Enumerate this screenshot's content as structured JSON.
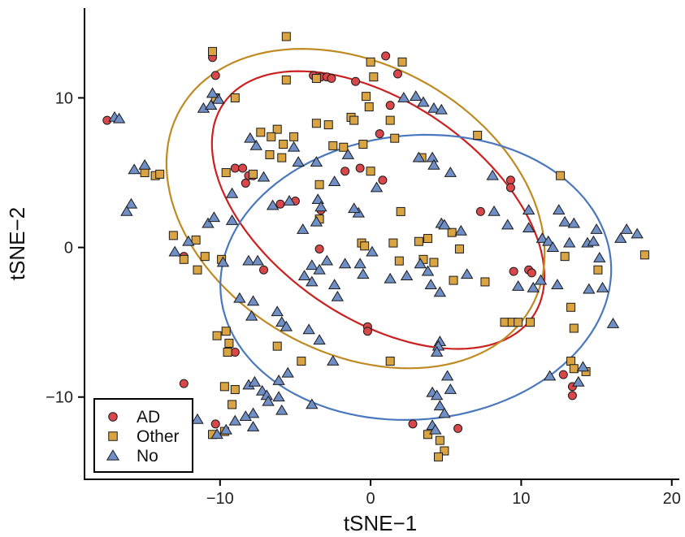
{
  "chart_data": {
    "type": "scatter",
    "title": "",
    "xlabel": "tSNE−1",
    "ylabel": "tSNE−2",
    "xlim": [
      -19,
      20.5
    ],
    "ylim": [
      -15.5,
      16
    ],
    "xticks": [
      {
        "value": -10,
        "label": "−10"
      },
      {
        "value": 0,
        "label": "0"
      },
      {
        "value": 10,
        "label": "10"
      },
      {
        "value": 20,
        "label": "20"
      }
    ],
    "yticks": [
      {
        "value": -10,
        "label": "−10"
      },
      {
        "value": 0,
        "label": "0"
      },
      {
        "value": 10,
        "label": "10"
      }
    ],
    "grid": false,
    "legend": {
      "position": "bottom-left"
    },
    "series": [
      {
        "name": "AD",
        "shape": "circle",
        "fill": "#D9474B",
        "ellipse_color": "#CC2020",
        "ellipse": {
          "cx": 0.5,
          "cy": 2.5,
          "rx": 12.5,
          "ry": 7.2,
          "angle_deg": -35
        },
        "points": [
          [
            -17.5,
            8.5
          ],
          [
            -10.5,
            12.7
          ],
          [
            -10.3,
            11.5
          ],
          [
            -3.8,
            11.5
          ],
          [
            -3.3,
            11.4
          ],
          [
            -2.9,
            11.4
          ],
          [
            -2.6,
            11.3
          ],
          [
            -1.0,
            11.1
          ],
          [
            1.0,
            12.8
          ],
          [
            1.8,
            11.6
          ],
          [
            1.3,
            9.5
          ],
          [
            0.6,
            7.6
          ],
          [
            -9.0,
            5.3
          ],
          [
            -8.5,
            5.3
          ],
          [
            -8.1,
            4.8
          ],
          [
            -7.8,
            4.8
          ],
          [
            -8.3,
            4.3
          ],
          [
            -1.7,
            5.1
          ],
          [
            -0.7,
            5.3
          ],
          [
            0.8,
            4.5
          ],
          [
            -6.0,
            2.9
          ],
          [
            -5.0,
            3.1
          ],
          [
            -3.3,
            2.5
          ],
          [
            -3.4,
            -0.1
          ],
          [
            -12.4,
            -0.6
          ],
          [
            -7.1,
            -1.5
          ],
          [
            -0.2,
            -5.3
          ],
          [
            -0.2,
            -5.6
          ],
          [
            -9.0,
            -7.0
          ],
          [
            -12.4,
            -9.1
          ],
          [
            -10.3,
            -11.8
          ],
          [
            2.8,
            -11.8
          ],
          [
            5.8,
            -12.1
          ],
          [
            7.3,
            2.4
          ],
          [
            9.3,
            4.5
          ],
          [
            9.3,
            4.0
          ],
          [
            9.5,
            -1.6
          ],
          [
            10.5,
            -1.5
          ],
          [
            10.7,
            -1.7
          ],
          [
            12.8,
            -8.5
          ],
          [
            13.4,
            -9.3
          ],
          [
            13.4,
            -9.9
          ]
        ]
      },
      {
        "name": "Other",
        "shape": "square",
        "fill": "#D9A441",
        "ellipse_color": "#C08A22",
        "ellipse": {
          "cx": -1.0,
          "cy": 2.6,
          "rx": 13.4,
          "ry": 9.6,
          "angle_deg": -30
        },
        "points": [
          [
            -10.5,
            13.1
          ],
          [
            -5.6,
            14.1
          ],
          [
            -3.6,
            11.3
          ],
          [
            -5.6,
            11.2
          ],
          [
            0.0,
            12.4
          ],
          [
            2.1,
            12.4
          ],
          [
            -9.0,
            10.0
          ],
          [
            -10.3,
            10.0
          ],
          [
            -7.3,
            7.7
          ],
          [
            -6.2,
            7.9
          ],
          [
            -5.1,
            7.4
          ],
          [
            -3.6,
            8.3
          ],
          [
            -2.8,
            8.2
          ],
          [
            -1.3,
            8.7
          ],
          [
            -0.1,
            9.4
          ],
          [
            0.2,
            11.4
          ],
          [
            -0.3,
            10.1
          ],
          [
            1.3,
            8.5
          ],
          [
            1.6,
            7.3
          ],
          [
            -1.1,
            8.5
          ],
          [
            -5.8,
            6.9
          ],
          [
            -6.6,
            7.4
          ],
          [
            -2.5,
            6.8
          ],
          [
            -1.8,
            6.7
          ],
          [
            -0.5,
            6.9
          ],
          [
            -6.7,
            6.2
          ],
          [
            -5.9,
            6.0
          ],
          [
            -9.6,
            5.0
          ],
          [
            -7.8,
            4.9
          ],
          [
            -3.4,
            4.2
          ],
          [
            0.0,
            5.1
          ],
          [
            3.4,
            6.0
          ],
          [
            7.1,
            7.5
          ],
          [
            -15.0,
            5.0
          ],
          [
            -14.3,
            4.8
          ],
          [
            -14.0,
            4.9
          ],
          [
            -13.1,
            0.8
          ],
          [
            -11.6,
            0.5
          ],
          [
            -11.0,
            -0.6
          ],
          [
            -11.5,
            -1.5
          ],
          [
            -9.9,
            -0.8
          ],
          [
            -12.4,
            -0.8
          ],
          [
            -3.4,
            1.9
          ],
          [
            -0.6,
            0.3
          ],
          [
            -0.4,
            0.1
          ],
          [
            1.5,
            0.3
          ],
          [
            1.9,
            -0.9
          ],
          [
            2.0,
            2.4
          ],
          [
            3.2,
            0.4
          ],
          [
            3.5,
            -0.8
          ],
          [
            4.2,
            -1.0
          ],
          [
            5.5,
            -2.2
          ],
          [
            5.9,
            -0.1
          ],
          [
            3.8,
            0.6
          ],
          [
            5.4,
            1.0
          ],
          [
            7.6,
            -2.3
          ],
          [
            8.9,
            -5.0
          ],
          [
            9.4,
            -5.0
          ],
          [
            9.8,
            -5.0
          ],
          [
            10.6,
            -5.0
          ],
          [
            12.6,
            4.8
          ],
          [
            13.3,
            -4.0
          ],
          [
            13.5,
            -5.4
          ],
          [
            13.3,
            -7.6
          ],
          [
            13.5,
            -8.1
          ],
          [
            14.3,
            -8.3
          ],
          [
            12.9,
            -0.6
          ],
          [
            15.1,
            -1.5
          ],
          [
            18.2,
            -0.5
          ],
          [
            -10.2,
            -5.9
          ],
          [
            -9.6,
            -5.6
          ],
          [
            -9.4,
            -6.4
          ],
          [
            -9.5,
            -7.0
          ],
          [
            -6.2,
            -6.6
          ],
          [
            -4.6,
            -7.6
          ],
          [
            -9.0,
            -9.5
          ],
          [
            -9.7,
            -9.3
          ],
          [
            -9.2,
            -10.5
          ],
          [
            -9.7,
            -12.3
          ],
          [
            -10.5,
            -12.5
          ],
          [
            1.3,
            -7.6
          ],
          [
            4.6,
            -12.9
          ],
          [
            4.9,
            -13.6
          ],
          [
            4.5,
            -14.0
          ],
          [
            3.8,
            -12.5
          ]
        ]
      },
      {
        "name": "No",
        "shape": "triangle",
        "fill": "#6F8FC6",
        "ellipse_color": "#4A78BE",
        "ellipse": {
          "cx": 3.0,
          "cy": -2.0,
          "rx": 13.0,
          "ry": 9.5,
          "angle_deg": 5
        },
        "points": [
          [
            -17.0,
            8.7
          ],
          [
            -16.7,
            8.6
          ],
          [
            -11.1,
            9.3
          ],
          [
            -10.6,
            9.5
          ],
          [
            -10.1,
            9.9
          ],
          [
            -10.5,
            10.3
          ],
          [
            -15.7,
            5.2
          ],
          [
            -15.0,
            5.5
          ],
          [
            -15.9,
            2.9
          ],
          [
            -16.2,
            2.4
          ],
          [
            -12.1,
            0.4
          ],
          [
            -10.8,
            1.6
          ],
          [
            -10.4,
            2.0
          ],
          [
            -9.2,
            1.8
          ],
          [
            -13.0,
            -0.3
          ],
          [
            -8.1,
            -0.9
          ],
          [
            -7.5,
            -0.9
          ],
          [
            -9.2,
            3.6
          ],
          [
            -6.5,
            2.8
          ],
          [
            -2.4,
            4.4
          ],
          [
            -4.8,
            5.7
          ],
          [
            -5.4,
            3.1
          ],
          [
            -4.5,
            1.2
          ],
          [
            -3.6,
            1.7
          ],
          [
            -3.5,
            3.2
          ],
          [
            -3.3,
            2.7
          ],
          [
            -0.8,
            2.3
          ],
          [
            -3.9,
            -1.2
          ],
          [
            -4.4,
            -1.9
          ],
          [
            -3.9,
            -2.3
          ],
          [
            -3.4,
            -1.5
          ],
          [
            -2.9,
            -0.9
          ],
          [
            -2.4,
            -2.5
          ],
          [
            -2.2,
            -3.3
          ],
          [
            -1.7,
            -1.1
          ],
          [
            -0.7,
            -1.1
          ],
          [
            -0.5,
            -1.8
          ],
          [
            0.1,
            -0.3
          ],
          [
            1.3,
            -2.1
          ],
          [
            2.4,
            -1.9
          ],
          [
            3.3,
            -1.1
          ],
          [
            3.8,
            -1.6
          ],
          [
            4.0,
            -2.5
          ],
          [
            4.6,
            -3.0
          ],
          [
            4.7,
            1.6
          ],
          [
            4.9,
            1.5
          ],
          [
            6.0,
            1.1
          ],
          [
            6.4,
            -1.8
          ],
          [
            8.2,
            2.4
          ],
          [
            9.1,
            1.5
          ],
          [
            10.5,
            1.3
          ],
          [
            10.5,
            2.5
          ],
          [
            11.4,
            0.6
          ],
          [
            11.8,
            0.4
          ],
          [
            12.1,
            0.0
          ],
          [
            12.5,
            2.5
          ],
          [
            12.9,
            1.7
          ],
          [
            13.5,
            1.6
          ],
          [
            13.2,
            0.3
          ],
          [
            14.4,
            0.3
          ],
          [
            14.8,
            0.4
          ],
          [
            15.0,
            1.2
          ],
          [
            15.2,
            -0.7
          ],
          [
            16.6,
            0.6
          ],
          [
            17.0,
            1.2
          ],
          [
            17.7,
            0.9
          ],
          [
            14.5,
            -2.8
          ],
          [
            15.4,
            -2.7
          ],
          [
            11.3,
            -2.2
          ],
          [
            16.1,
            -5.1
          ],
          [
            -7.6,
            6.8
          ],
          [
            -8.0,
            7.3
          ],
          [
            -7.1,
            4.7
          ],
          [
            -5.1,
            6.7
          ],
          [
            -3.6,
            5.7
          ],
          [
            -1.1,
            2.6
          ],
          [
            0.4,
            4.0
          ],
          [
            -9.8,
            -1.0
          ],
          [
            -8.7,
            -3.4
          ],
          [
            -7.8,
            -3.6
          ],
          [
            -7.9,
            -4.6
          ],
          [
            -6.2,
            -4.3
          ],
          [
            -5.9,
            -5.0
          ],
          [
            -5.6,
            -5.3
          ],
          [
            -4.1,
            -5.5
          ],
          [
            -3.4,
            -6.2
          ],
          [
            -8.1,
            -9.2
          ],
          [
            -7.7,
            -9.0
          ],
          [
            -7.2,
            -9.6
          ],
          [
            -6.9,
            -9.9
          ],
          [
            -6.8,
            -10.3
          ],
          [
            -6.1,
            -10.0
          ],
          [
            -5.9,
            -10.9
          ],
          [
            -5.5,
            -8.4
          ],
          [
            -6.1,
            -8.9
          ],
          [
            -7.8,
            -11.1
          ],
          [
            -8.3,
            -11.3
          ],
          [
            -9.0,
            -11.6
          ],
          [
            -9.6,
            -12.2
          ],
          [
            -10.2,
            -12.5
          ],
          [
            -11.5,
            -11.5
          ],
          [
            -7.8,
            -12.0
          ],
          [
            -3.9,
            -10.5
          ],
          [
            -2.5,
            -7.6
          ],
          [
            4.1,
            -9.7
          ],
          [
            4.4,
            -9.9
          ],
          [
            4.6,
            -10.6
          ],
          [
            4.9,
            -11.1
          ],
          [
            5.1,
            -8.6
          ],
          [
            5.3,
            -9.5
          ],
          [
            4.6,
            -6.3
          ],
          [
            4.5,
            -6.6
          ],
          [
            4.4,
            -7.0
          ],
          [
            4.1,
            -11.9
          ],
          [
            4.3,
            -12.2
          ],
          [
            11.9,
            -8.6
          ],
          [
            13.8,
            -9.0
          ],
          [
            14.1,
            -8.0
          ],
          [
            10.8,
            -2.7
          ],
          [
            12.4,
            -2.5
          ],
          [
            9.8,
            -2.6
          ],
          [
            4.1,
            6.0
          ],
          [
            3.2,
            6.0
          ],
          [
            4.2,
            5.5
          ],
          [
            5.3,
            5.0
          ],
          [
            8.1,
            4.8
          ],
          [
            2.2,
            10.0
          ],
          [
            3.0,
            10.1
          ],
          [
            3.5,
            9.7
          ],
          [
            4.2,
            9.3
          ],
          [
            4.7,
            9.2
          ],
          [
            -1.5,
            6.2
          ]
        ]
      }
    ]
  }
}
